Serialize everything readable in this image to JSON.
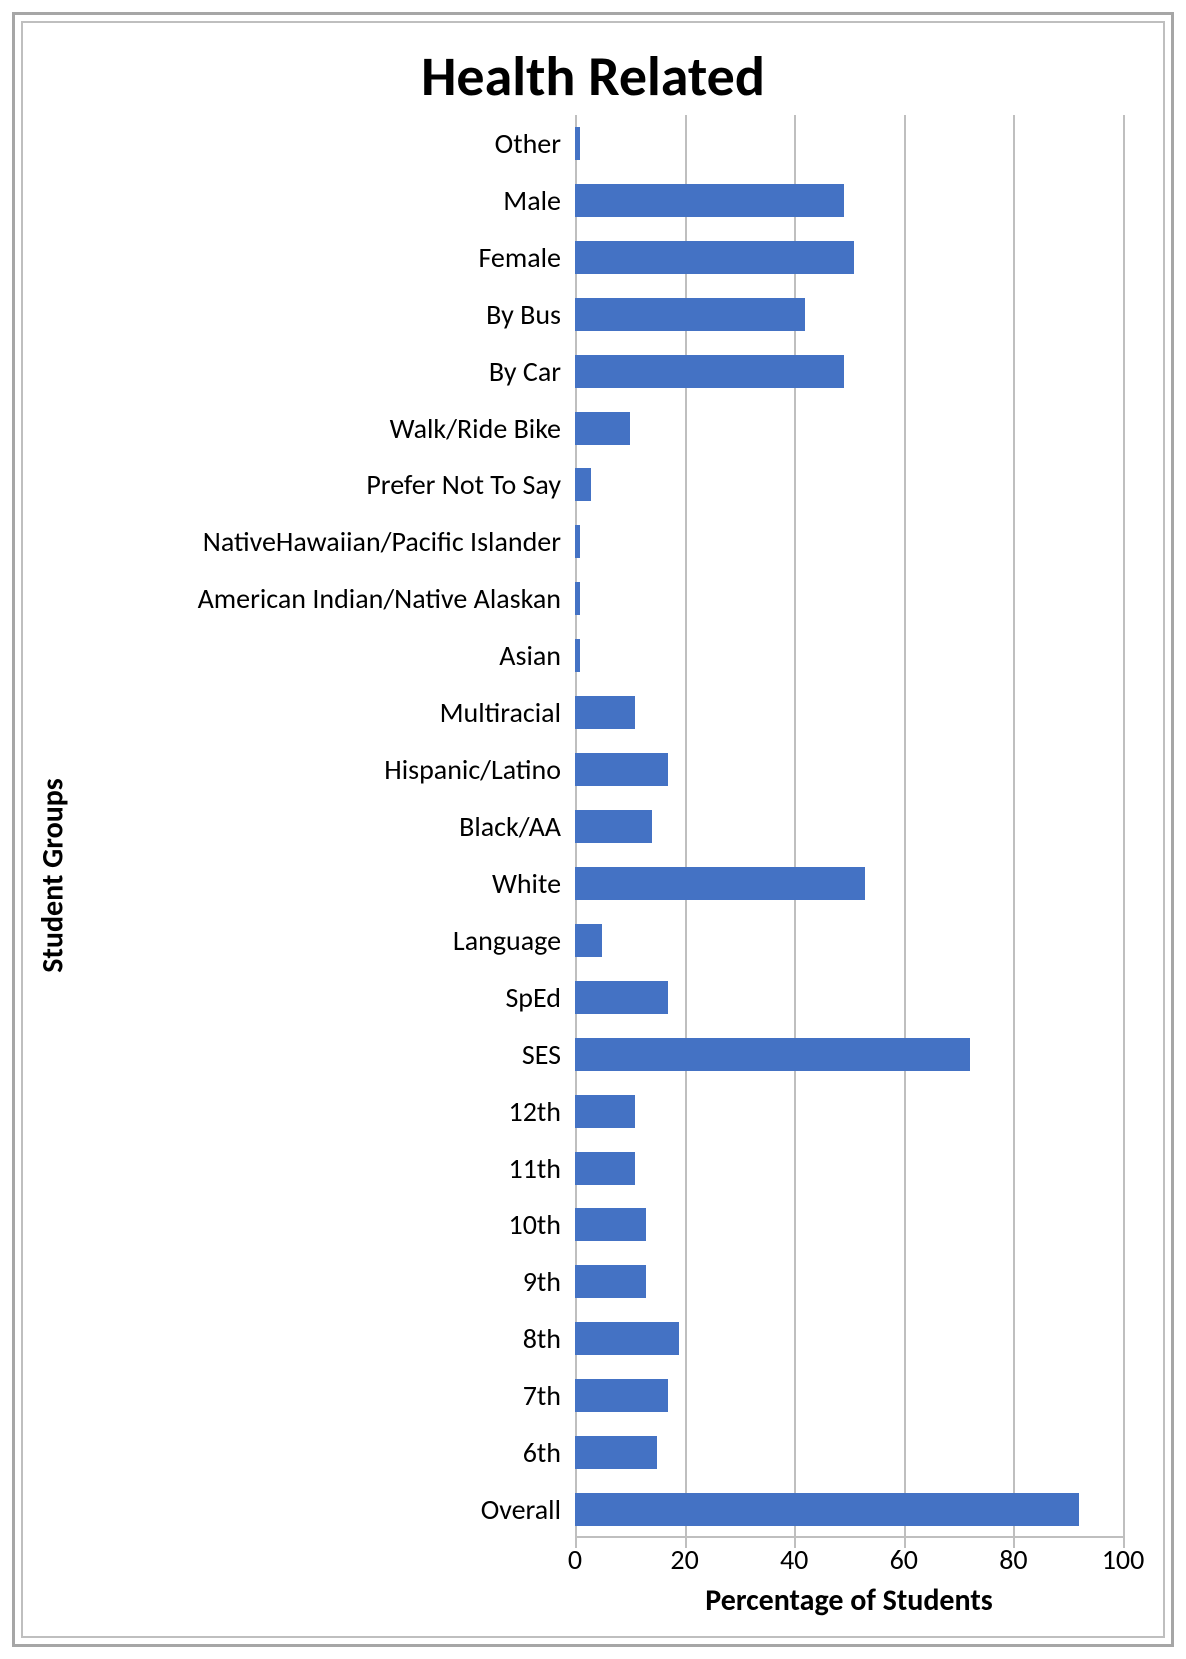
{
  "chart": {
    "type": "bar",
    "orientation": "horizontal",
    "title": "Health Related",
    "title_fontsize": 56,
    "title_fontweight": "700",
    "title_color": "#000000",
    "y_axis_title": "Student Groups",
    "y_axis_title_fontsize": 30,
    "y_axis_title_fontweight": "700",
    "x_axis_title": "Percentage of Students",
    "x_axis_title_fontsize": 30,
    "x_axis_title_fontweight": "700",
    "xlim": [
      0,
      100
    ],
    "xtick_step": 20,
    "xticks": [
      0,
      20,
      40,
      60,
      80,
      100
    ],
    "tick_fontsize": 28,
    "label_fontsize": 28,
    "label_color": "#000000",
    "bar_color": "#4472c4",
    "bar_width_ratio": 0.58,
    "grid_color": "#bfbfbf",
    "axis_line_color": "#bfbfbf",
    "background_color": "#ffffff",
    "outer_border_color": "#a6a6a6",
    "inner_border_color": "#bfbfbf",
    "categories": [
      "Other",
      "Male",
      "Female",
      "By Bus",
      "By Car",
      "Walk/Ride Bike",
      "Prefer Not To Say",
      "NativeHawaiian/Pacific Islander",
      "American Indian/Native Alaskan",
      "Asian",
      "Multiracial",
      "Hispanic/Latino",
      "Black/AA",
      "White",
      "Language",
      "SpEd",
      "SES",
      "12th",
      "11th",
      "10th",
      "9th",
      "8th",
      "7th",
      "6th",
      "Overall"
    ],
    "values": [
      1,
      49,
      51,
      42,
      49,
      10,
      3,
      1,
      1,
      1,
      11,
      17,
      14,
      53,
      5,
      17,
      72,
      11,
      11,
      13,
      13,
      19,
      17,
      15,
      92
    ]
  }
}
